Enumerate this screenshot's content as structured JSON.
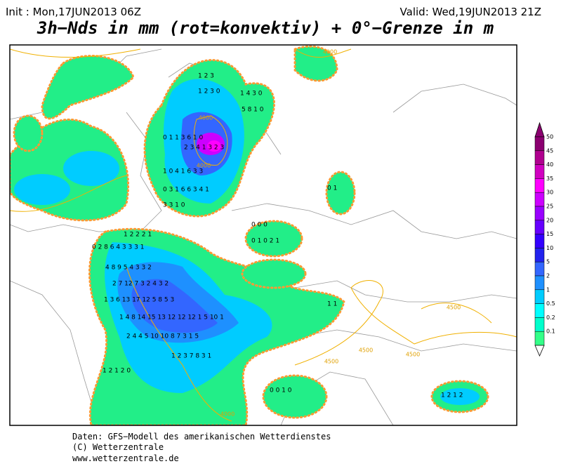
{
  "header": {
    "init": "Init : Mon,17JUN2013 06Z",
    "valid": "Valid: Wed,19JUN2013 21Z",
    "title": "3h−Nds in mm (rot=konvektiv) + 0°−Grenze in m"
  },
  "colorbar": {
    "levels": [
      "50",
      "45",
      "40",
      "35",
      "30",
      "25",
      "20",
      "15",
      "10",
      "5",
      "2",
      "1",
      "0.5",
      "0.2",
      "0.1"
    ],
    "colors": [
      "#8b0070",
      "#b0008f",
      "#d000c0",
      "#ff00ff",
      "#cc00ff",
      "#9900ff",
      "#6600ff",
      "#3300ff",
      "#2222ee",
      "#3366ff",
      "#1e90ff",
      "#00ccff",
      "#00ffff",
      "#00ffcc",
      "#33ff88"
    ]
  },
  "contour_labels": [
    "4000",
    "4000",
    "4000",
    "4000",
    "4500",
    "4500",
    "4500",
    "4500"
  ],
  "map_values": [
    "1 2 3",
    "1 2 3 0",
    "1 4 3 0",
    "5 8 1 0",
    "0 1 1 3 6 1 0",
    "2 3 4 1 3 2 3",
    "1 0 4 1 6 3 3",
    "0 3 1 6 6 3 4 1",
    "3 3 1 0",
    "0 0 0",
    "0 1 0 2 1",
    "1 2 2 2 1",
    "0 2 8 6 4 3 3 3 1",
    "4 8 9 5 4 3 3 2",
    "2 7 12 7 3 2 4 3 2",
    "1 3 6 13 17 12 5 8 5 3",
    "1 4 8 14 15 13 12 12 12 1 5 10 1",
    "2 4 4 5 10 10 8 7 3 1 5",
    "1 2 3 7 8 3 1",
    "1 2 1 2 0",
    "0 0 1 0",
    "1 2 1 2",
    "0 1",
    "1 1"
  ],
  "footer": {
    "line1": "Daten: GFS−Modell des amerikanischen Wetterdienstes",
    "line2": "(C) Wetterzentrale",
    "line3": "www.wetterzentrale.de"
  }
}
